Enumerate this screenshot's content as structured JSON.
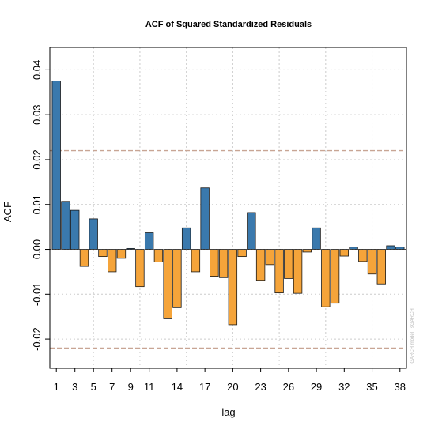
{
  "chart_data": {
    "type": "bar",
    "title": "ACF of Squared Standardized Residuals",
    "xlabel": "lag",
    "ylabel": "ACF",
    "lags": [
      1,
      2,
      3,
      4,
      5,
      6,
      7,
      8,
      9,
      10,
      11,
      12,
      13,
      14,
      15,
      16,
      17,
      18,
      19,
      20,
      21,
      22,
      23,
      24,
      25,
      26,
      27,
      28,
      29,
      30,
      31,
      32,
      33,
      34,
      35,
      36,
      37,
      38
    ],
    "values": [
      0.0375,
      0.0107,
      0.0087,
      -0.0038,
      0.0068,
      -0.0016,
      -0.005,
      -0.002,
      0.0002,
      -0.0083,
      0.0037,
      -0.0028,
      -0.0153,
      -0.013,
      0.0048,
      -0.005,
      0.0137,
      -0.006,
      -0.0063,
      -0.0168,
      -0.0016,
      0.0082,
      -0.0069,
      -0.0034,
      -0.0097,
      -0.0065,
      -0.0098,
      -0.0006,
      0.0048,
      -0.0128,
      -0.012,
      -0.0015,
      0.0005,
      -0.0027,
      -0.0055,
      -0.0077,
      0.0008,
      0.0005
    ],
    "x_ticks": [
      "1",
      "3",
      "5",
      "7",
      "9",
      "11",
      "14",
      "17",
      "20",
      "23",
      "26",
      "29",
      "32",
      "35",
      "38"
    ],
    "y_ticks": [
      "-0.02",
      "-0.01",
      "0.00",
      "0.01",
      "0.02",
      "0.03",
      "0.04"
    ],
    "ylim": [
      -0.0265,
      0.045
    ],
    "xlim": [
      0.3,
      38.7
    ],
    "confidence_bound": 0.022,
    "grid": true,
    "colors": {
      "positive": "#3a79ad",
      "negative": "#f5a43a",
      "bar_outline": "#1a1a1a",
      "grid": "#cccccc",
      "confidence_line": "#c8a594",
      "zero_line": "#444444"
    },
    "watermark": "GARCH model : sGARCH"
  }
}
